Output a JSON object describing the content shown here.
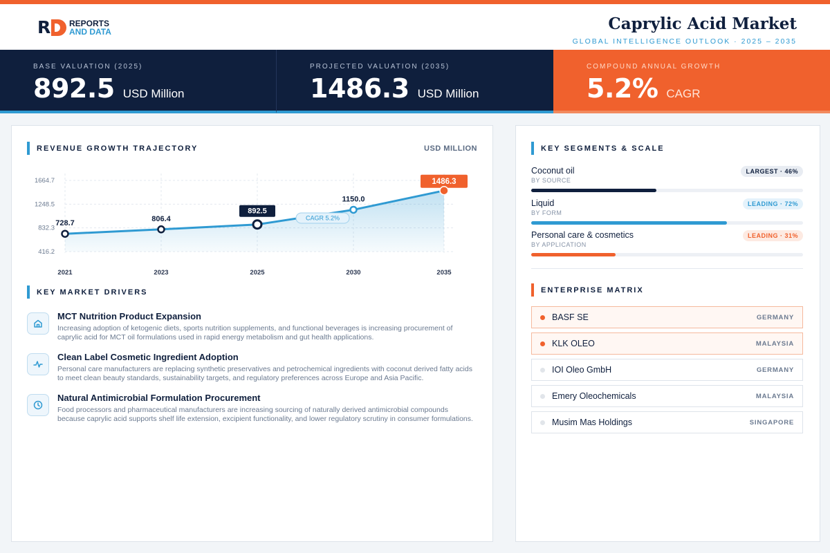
{
  "header": {
    "brand_line1": "REPORTS",
    "brand_line2": "AND DATA",
    "title": "Caprylic Acid Market",
    "subtitle": "GLOBAL INTELLIGENCE OUTLOOK  ·  2025 – 2035"
  },
  "kpis": [
    {
      "label": "BASE VALUATION (2025)",
      "value": "892.5",
      "unit": "USD Million"
    },
    {
      "label": "PROJECTED VALUATION (2035)",
      "value": "1486.3",
      "unit": "USD Million"
    },
    {
      "label": "COMPOUND ANNUAL GROWTH",
      "value": "5.2%",
      "unit": "CAGR"
    }
  ],
  "colors": {
    "navy": "#0f1f3d",
    "blue": "#2f9ad2",
    "orange": "#f0612d"
  },
  "chart_data": {
    "type": "area",
    "title": "REVENUE GROWTH TRAJECTORY",
    "unit_label": "USD MILLION",
    "x": [
      "2021",
      "2023",
      "2025",
      "2030",
      "2035"
    ],
    "values": [
      728.7,
      806.4,
      892.5,
      1150.0,
      1486.3
    ],
    "value_labels": [
      "728.7",
      "806.4",
      "892.5",
      "1150.0",
      "1486.3"
    ],
    "y_ticks": [
      "1664.7",
      "1248.5",
      "832.3",
      "416.2"
    ],
    "ylim": [
      416.2,
      1664.7
    ],
    "annotation": "CAGR 5.2%",
    "grid": true
  },
  "drivers": {
    "title": "KEY MARKET DRIVERS",
    "items": [
      {
        "icon": "home-icon",
        "title": "MCT Nutrition Product Expansion",
        "desc": "Increasing adoption of ketogenic diets, sports nutrition supplements, and functional beverages is increasing procurement of caprylic acid for MCT oil formulations used in rapid energy metabolism and gut health applications."
      },
      {
        "icon": "pulse-icon",
        "title": "Clean Label Cosmetic Ingredient Adoption",
        "desc": "Personal care manufacturers are replacing synthetic preservatives and petrochemical ingredients with coconut derived fatty acids to meet clean beauty standards, sustainability targets, and regulatory preferences across Europe and Asia Pacific."
      },
      {
        "icon": "clock-icon",
        "title": "Natural Antimicrobial Formulation Procurement",
        "desc": "Food processors and pharmaceutical manufacturers are increasing sourcing of naturally derived antimicrobial compounds because caprylic acid supports shelf life extension, excipient functionality, and lower regulatory scrutiny in consumer formulations."
      }
    ]
  },
  "segments": {
    "title": "KEY SEGMENTS & SCALE",
    "items": [
      {
        "name": "Coconut oil",
        "sub": "BY SOURCE",
        "badge": "LARGEST · 46%",
        "share": 0.46,
        "color": "#0f1f3d",
        "badge_bg": "#e8ecf2",
        "badge_fg": "#0f1f3d"
      },
      {
        "name": "Liquid",
        "sub": "BY FORM",
        "badge": "LEADING · 72%",
        "share": 0.72,
        "color": "#2f9ad2",
        "badge_bg": "#e4f2fb",
        "badge_fg": "#2f9ad2"
      },
      {
        "name": "Personal care & cosmetics",
        "sub": "BY APPLICATION",
        "badge": "LEADING · 31%",
        "share": 0.31,
        "color": "#f0612d",
        "badge_bg": "#fdeae2",
        "badge_fg": "#f0612d"
      }
    ]
  },
  "matrix": {
    "title": "ENTERPRISE MATRIX",
    "items": [
      {
        "name": "BASF SE",
        "country": "GERMANY",
        "highlight": true
      },
      {
        "name": "KLK OLEO",
        "country": "MALAYSIA",
        "highlight": true
      },
      {
        "name": "IOI Oleo GmbH",
        "country": "GERMANY",
        "highlight": false
      },
      {
        "name": "Emery Oleochemicals",
        "country": "MALAYSIA",
        "highlight": false
      },
      {
        "name": "Musim Mas Holdings",
        "country": "SINGAPORE",
        "highlight": false
      }
    ]
  }
}
